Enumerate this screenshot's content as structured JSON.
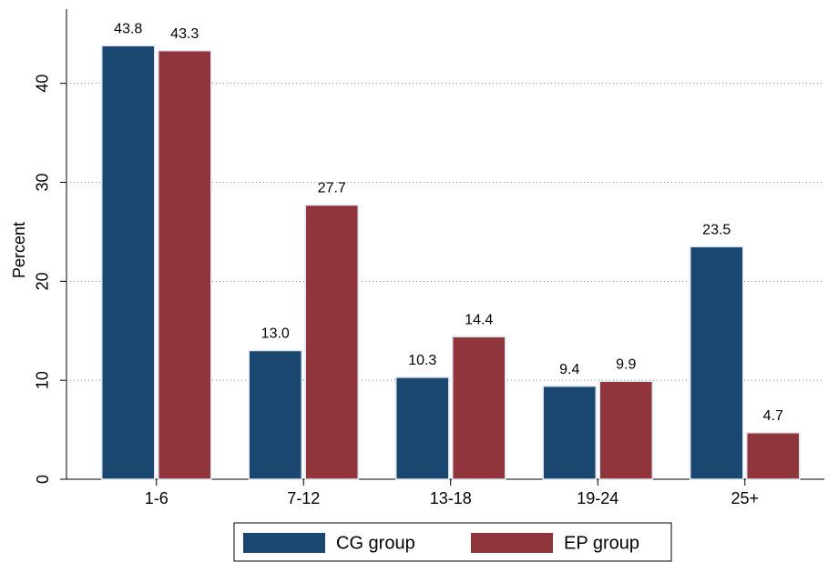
{
  "chart_data": {
    "type": "bar",
    "y_label": "Percent",
    "categories": [
      "1-6",
      "7-12",
      "13-18",
      "19-24",
      "25+"
    ],
    "series": [
      {
        "name": "CG group",
        "color": "#1a476f",
        "values": [
          43.8,
          13.0,
          10.3,
          9.4,
          23.5
        ],
        "value_labels": [
          "43.8",
          "13.0",
          "10.3",
          "9.4",
          "23.5"
        ]
      },
      {
        "name": "EP group",
        "color": "#90353b",
        "values": [
          43.3,
          27.7,
          14.4,
          9.9,
          4.7
        ],
        "value_labels": [
          "43.3",
          "27.7",
          "14.4",
          "9.9",
          "4.7"
        ]
      }
    ],
    "ylim": [
      0,
      47.5
    ],
    "yticks": [
      0,
      10,
      20,
      30,
      40
    ],
    "grid": true
  }
}
